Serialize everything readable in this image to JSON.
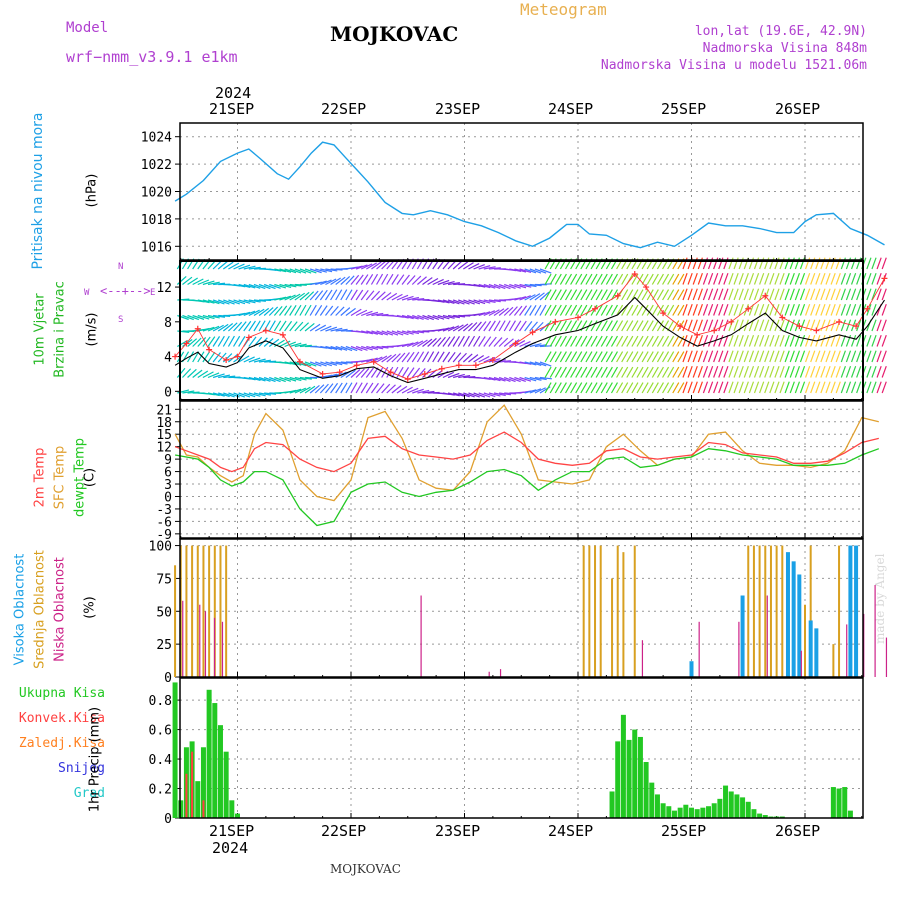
{
  "header": {
    "model_label": "Model",
    "model_name": "wrf−nmm_v3.9.1  e1km",
    "title": "MOJKOVAC",
    "meteogram": "Meteogram",
    "lonlat": "lon,lat (19.6E, 42.9N)",
    "elevation": "Nadmorska Visina 848m",
    "model_elevation": "Nadmorska Visina u modelu 1521.06m"
  },
  "footer": {
    "location": "MOJKOVAC",
    "watermark": "made by Angel"
  },
  "date_axis": {
    "year": "2024",
    "labels": [
      "21SEP",
      "22SEP",
      "23SEP",
      "24SEP",
      "25SEP",
      "26SEP"
    ]
  },
  "wind_compass": {
    "w": "W",
    "e": "E",
    "n": "N",
    "s": "S"
  },
  "colors": {
    "pressure": "#1ea0e6",
    "wind_speed": "#000000",
    "gust": "#ff3333",
    "temp_2m": "#ff4444",
    "temp_sfc": "#e0a030",
    "temp_dew": "#22c822",
    "cloud_high": "#1aa0e6",
    "cloud_mid": "#d8a020",
    "cloud_low": "#cc2288",
    "precip_total": "#22c822",
    "precip_conv": "#ff4040",
    "frame": "#000000"
  },
  "panels": {
    "pressure": {
      "label": "Pritisak na nivou mora",
      "unit": "(hPa)"
    },
    "wind": {
      "label1": "10m  Vjetar",
      "label2": "Brzina i Pravac",
      "unit": "(m/s)"
    },
    "temp": {
      "label1": "2m Temp",
      "label2": "SFC Temp",
      "label3": "dewpt Temp",
      "unit": "(C)"
    },
    "cloud": {
      "label1": "Visoka Oblacnost",
      "label2": "Srednja Oblacnost",
      "label3": "Niska Oblacnost",
      "unit": "(%)"
    },
    "precip": {
      "legend": [
        "Ukupna  Kisa",
        "Konvek.Kisa",
        "Zaledj.Kisa",
        "Snijeg",
        "Grad"
      ],
      "legend_colors": [
        "#22c822",
        "#ff4040",
        "#ff8020",
        "#3333dd",
        "#22c8c8"
      ],
      "unit": "1hr Precip (mm)"
    }
  },
  "chart_data": [
    {
      "type": "line",
      "title": "",
      "ylabel": "Pritisak na nivou mora (hPa)",
      "ylim": [
        1015,
        1025
      ],
      "yticks": [
        "1016",
        "1018",
        "1020",
        "1022",
        "1024"
      ],
      "x_unit": "days from 21SEP 00UTC",
      "x": [
        -0.55,
        -0.45,
        -0.3,
        -0.15,
        0,
        0.1,
        0.2,
        0.35,
        0.45,
        0.55,
        0.65,
        0.75,
        0.85,
        0.95,
        1.05,
        1.15,
        1.3,
        1.45,
        1.55,
        1.7,
        1.85,
        2.0,
        2.15,
        2.3,
        2.45,
        2.6,
        2.75,
        2.9,
        3.0,
        3.1,
        3.25,
        3.4,
        3.55,
        3.7,
        3.85,
        4.0,
        4.15,
        4.3,
        4.45,
        4.6,
        4.75,
        4.9,
        5.0,
        5.1,
        5.25,
        5.4,
        5.55,
        5.7
      ],
      "series": [
        {
          "name": "",
          "values": [
            1019.3,
            1019.8,
            1020.8,
            1022.2,
            1022.8,
            1023.1,
            1022.4,
            1021.3,
            1020.9,
            1021.8,
            1022.8,
            1023.6,
            1023.4,
            1022.5,
            1021.6,
            1020.7,
            1019.2,
            1018.4,
            1018.3,
            1018.6,
            1018.3,
            1017.8,
            1017.5,
            1017.0,
            1016.4,
            1016.0,
            1016.6,
            1017.6,
            1017.6,
            1016.9,
            1016.8,
            1016.2,
            1015.9,
            1016.3,
            1016.0,
            1016.8,
            1017.7,
            1017.5,
            1017.5,
            1017.3,
            1017.0,
            1017.0,
            1017.8,
            1018.3,
            1018.4,
            1017.3,
            1016.8,
            1016.1
          ]
        }
      ]
    },
    {
      "type": "line",
      "title": "",
      "ylabel": "10m Vjetar Brzina i Pravac (m/s)",
      "ylim": [
        -1,
        15
      ],
      "yticks": [
        "0",
        "4",
        "8",
        "12"
      ],
      "x": [
        -0.55,
        -0.45,
        -0.35,
        -0.25,
        -0.1,
        0,
        0.1,
        0.25,
        0.4,
        0.55,
        0.75,
        0.9,
        1.05,
        1.2,
        1.35,
        1.5,
        1.65,
        1.8,
        1.95,
        2.1,
        2.25,
        2.45,
        2.6,
        2.8,
        3.0,
        3.15,
        3.35,
        3.5,
        3.6,
        3.75,
        3.9,
        4.05,
        4.2,
        4.35,
        4.5,
        4.65,
        4.8,
        4.95,
        5.1,
        5.3,
        5.45,
        5.55,
        5.7
      ],
      "series": [
        {
          "name": "",
          "values": [
            3.0,
            3.8,
            4.5,
            3.2,
            2.8,
            3.3,
            5.0,
            5.8,
            5.0,
            2.5,
            1.5,
            1.8,
            2.6,
            2.8,
            1.8,
            1.0,
            1.5,
            2.0,
            2.5,
            2.5,
            3.0,
            4.5,
            5.5,
            6.5,
            7.0,
            7.8,
            8.8,
            10.8,
            9.5,
            7.5,
            6.2,
            5.2,
            5.8,
            6.5,
            7.8,
            9.0,
            7.0,
            6.2,
            5.8,
            6.5,
            6.0,
            7.5,
            10.5
          ]
        },
        {
          "name": "",
          "values": [
            4.0,
            5.5,
            7.2,
            4.8,
            3.6,
            4.0,
            6.2,
            7.0,
            6.5,
            3.4,
            2.0,
            2.2,
            3.0,
            3.4,
            2.2,
            1.4,
            2.0,
            2.6,
            3.0,
            3.0,
            3.6,
            5.5,
            6.8,
            8.0,
            8.5,
            9.5,
            11.0,
            13.5,
            12.0,
            9.0,
            7.5,
            6.5,
            7.0,
            8.0,
            9.5,
            11.0,
            8.5,
            7.5,
            7.0,
            8.0,
            7.5,
            9.5,
            13.0
          ]
        }
      ]
    },
    {
      "type": "line",
      "title": "",
      "ylabel": "2m Temp / SFC Temp / dewpt Temp (C)",
      "ylim": [
        -10,
        23
      ],
      "yticks": [
        "-9",
        "-6",
        "-3",
        "0",
        "3",
        "6",
        "9",
        "12",
        "15",
        "18",
        "21"
      ],
      "x": [
        -0.55,
        -0.45,
        -0.35,
        -0.25,
        -0.15,
        -0.05,
        0.05,
        0.15,
        0.25,
        0.4,
        0.55,
        0.7,
        0.85,
        1.0,
        1.15,
        1.3,
        1.45,
        1.6,
        1.75,
        1.9,
        2.05,
        2.2,
        2.35,
        2.5,
        2.65,
        2.8,
        2.95,
        3.1,
        3.25,
        3.4,
        3.55,
        3.7,
        3.85,
        4.0,
        4.15,
        4.3,
        4.45,
        4.6,
        4.75,
        4.9,
        5.05,
        5.2,
        5.35,
        5.5,
        5.65
      ],
      "series": [
        {
          "name": "",
          "values": [
            12.0,
            11.0,
            10.0,
            9.0,
            7.0,
            6.0,
            7.0,
            11.5,
            13.0,
            12.5,
            9.0,
            7.0,
            6.0,
            8.0,
            14.0,
            14.5,
            11.5,
            10.0,
            9.5,
            9.0,
            10.0,
            13.5,
            15.5,
            13.0,
            9.0,
            8.0,
            7.5,
            8.0,
            11.0,
            11.5,
            9.5,
            9.0,
            9.5,
            10.0,
            13.0,
            12.5,
            10.5,
            10.0,
            9.5,
            8.0,
            8.0,
            8.5,
            10.5,
            13.0,
            14.0
          ]
        },
        {
          "name": "",
          "values": [
            15.0,
            10.0,
            9.5,
            7.0,
            5.0,
            3.5,
            5.0,
            15.0,
            20.0,
            16.0,
            4.0,
            0.0,
            -1.0,
            4.0,
            19.0,
            20.5,
            14.0,
            4.0,
            2.0,
            1.5,
            6.0,
            18.0,
            22.0,
            15.0,
            4.0,
            3.5,
            3.0,
            4.0,
            12.0,
            15.0,
            11.0,
            7.5,
            9.0,
            9.5,
            15.0,
            15.5,
            11.0,
            8.0,
            7.5,
            7.5,
            7.0,
            8.0,
            11.0,
            19.0,
            18.0
          ]
        },
        {
          "name": "",
          "values": [
            10.0,
            9.5,
            9.0,
            7.0,
            4.0,
            2.5,
            3.5,
            6.0,
            6.0,
            4.0,
            -3.0,
            -7.0,
            -6.0,
            1.0,
            3.0,
            3.5,
            1.0,
            0.0,
            1.0,
            1.5,
            3.5,
            6.0,
            6.5,
            5.0,
            1.5,
            4.0,
            6.0,
            6.0,
            9.0,
            9.5,
            7.0,
            7.5,
            9.0,
            9.5,
            11.5,
            11.0,
            10.0,
            9.5,
            9.0,
            7.5,
            7.5,
            7.5,
            8.0,
            10.0,
            11.5
          ]
        }
      ]
    },
    {
      "type": "bar",
      "title": "",
      "ylabel": "Visoka / Srednja / Niska Oblacnost (%)",
      "ylim": [
        0,
        105
      ],
      "yticks": [
        "0",
        "25",
        "50",
        "75",
        "100"
      ],
      "series": [
        {
          "name": "",
          "x": [
            4.0,
            4.45,
            4.85,
            4.9,
            4.95,
            5.05,
            5.1,
            5.4,
            5.45
          ],
          "values": [
            12,
            62,
            95,
            88,
            78,
            43,
            37,
            100,
            100
          ]
        },
        {
          "name": "",
          "x": [
            -0.55,
            -0.5,
            -0.45,
            -0.4,
            -0.35,
            -0.3,
            -0.25,
            -0.2,
            -0.15,
            -0.1,
            3.05,
            3.1,
            3.15,
            3.2,
            3.3,
            3.35,
            3.4,
            3.5,
            4.5,
            4.55,
            4.6,
            4.65,
            4.7,
            4.75,
            4.8,
            5.0,
            5.05,
            5.25,
            5.3
          ],
          "values": [
            85,
            100,
            100,
            100,
            100,
            100,
            100,
            100,
            100,
            100,
            100,
            100,
            100,
            100,
            75,
            100,
            95,
            100,
            100,
            100,
            100,
            100,
            100,
            100,
            100,
            55,
            100,
            25,
            100
          ]
        },
        {
          "name": "",
          "x": [
            -0.5,
            -0.35,
            -0.3,
            -0.22,
            -0.15,
            1.6,
            2.2,
            2.3,
            3.55,
            4.05,
            4.4,
            4.65,
            4.95,
            5.35,
            5.5,
            5.6,
            5.7
          ],
          "values": [
            58,
            55,
            50,
            45,
            42,
            62,
            4,
            6,
            28,
            42,
            42,
            62,
            20,
            40,
            48,
            70,
            30
          ]
        }
      ]
    },
    {
      "type": "bar",
      "title": "",
      "ylabel": "1hr Precip (mm)",
      "ylim": [
        0,
        0.95
      ],
      "yticks": [
        "0",
        "0.2",
        "0.4",
        "0.6",
        "0.8"
      ],
      "series": [
        {
          "name": "Ukupna  Kisa",
          "x": [
            -0.55,
            -0.5,
            -0.45,
            -0.4,
            -0.35,
            -0.3,
            -0.25,
            -0.2,
            -0.15,
            -0.1,
            -0.05,
            0.0,
            3.3,
            3.35,
            3.4,
            3.45,
            3.5,
            3.55,
            3.6,
            3.65,
            3.7,
            3.75,
            3.8,
            3.85,
            3.9,
            3.95,
            4.0,
            4.05,
            4.1,
            4.15,
            4.2,
            4.25,
            4.3,
            4.35,
            4.4,
            4.45,
            4.5,
            4.55,
            4.6,
            4.65,
            4.7,
            4.75,
            4.8,
            5.25,
            5.3,
            5.35,
            5.4
          ],
          "values": [
            0.92,
            0.12,
            0.48,
            0.52,
            0.25,
            0.48,
            0.87,
            0.78,
            0.63,
            0.45,
            0.12,
            0.03,
            0.18,
            0.52,
            0.7,
            0.53,
            0.6,
            0.55,
            0.38,
            0.24,
            0.16,
            0.1,
            0.08,
            0.05,
            0.07,
            0.09,
            0.07,
            0.06,
            0.07,
            0.08,
            0.1,
            0.13,
            0.22,
            0.18,
            0.16,
            0.14,
            0.11,
            0.06,
            0.03,
            0.02,
            0.01,
            0.01,
            0.01,
            0.21,
            0.2,
            0.21,
            0.05
          ]
        },
        {
          "name": "Konvek.Kisa",
          "x": [
            -0.45,
            -0.4,
            -0.3
          ],
          "values": [
            0.3,
            0.45,
            0.12
          ]
        }
      ]
    }
  ]
}
